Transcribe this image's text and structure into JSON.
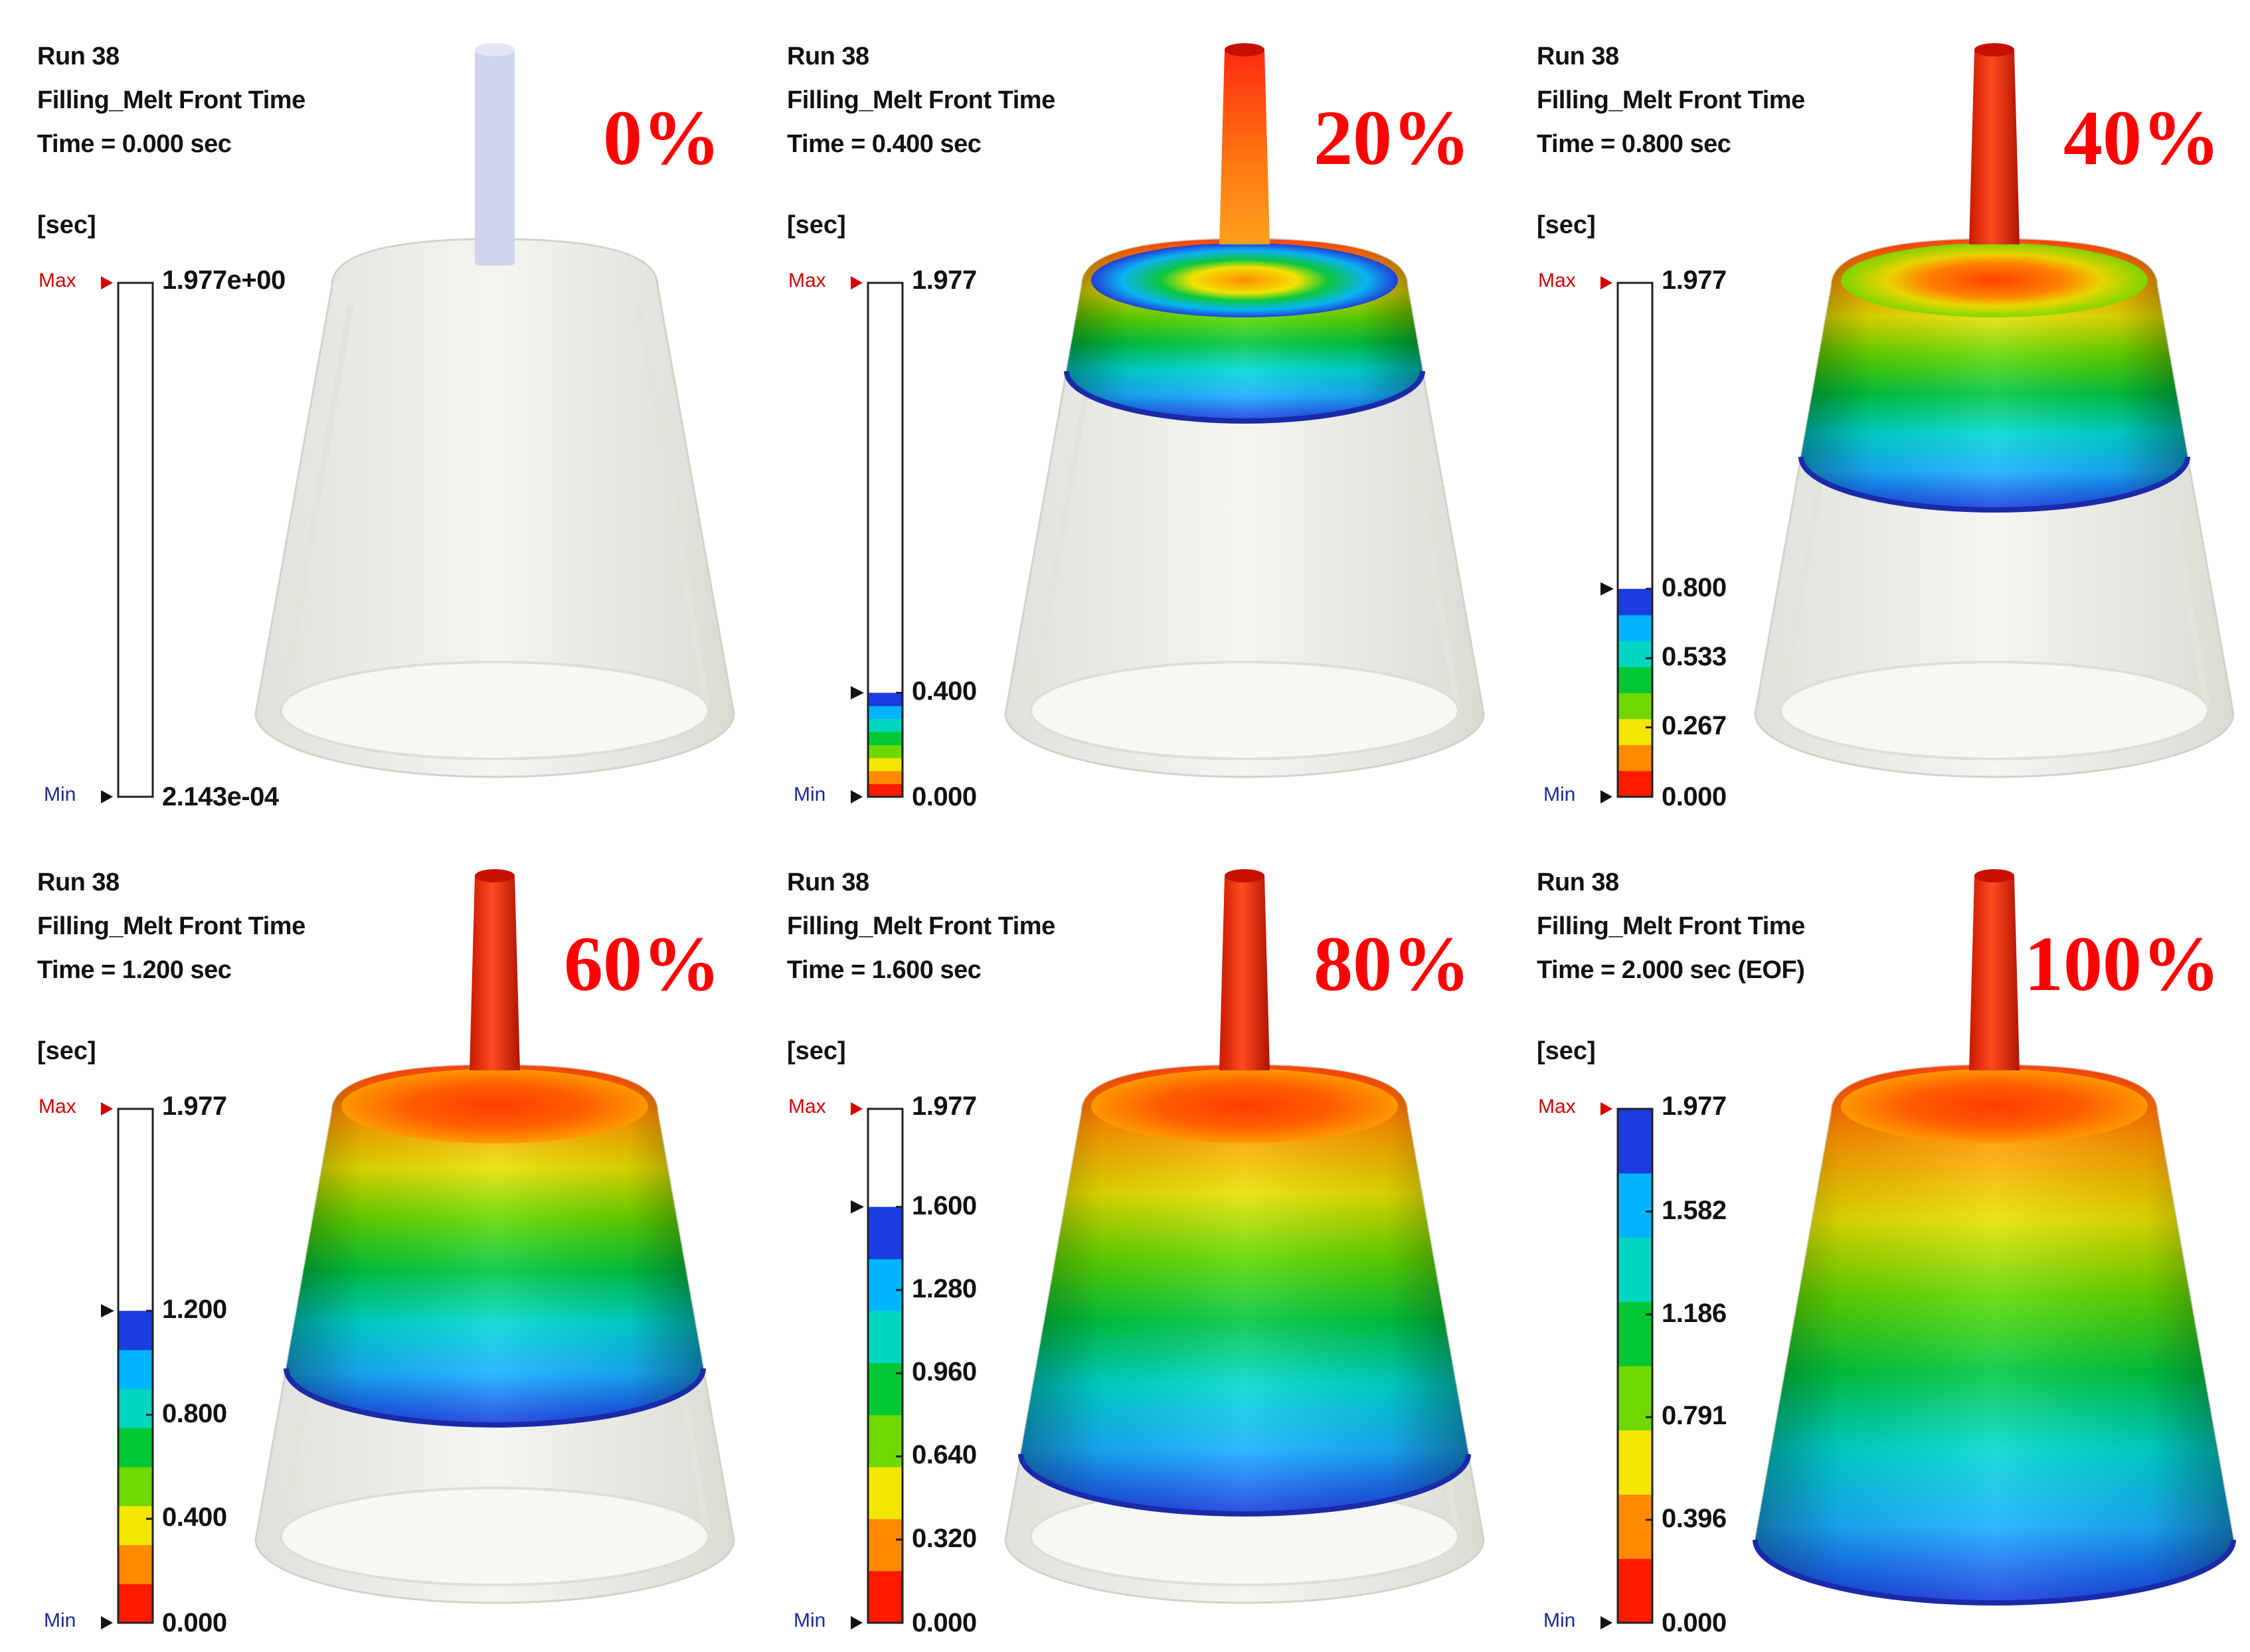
{
  "panels": [
    {
      "run": "Run 38",
      "result": "Filling_Melt Front Time",
      "time": "Time = 0.000 sec",
      "unit": "[sec]",
      "percent": "0%",
      "fill_fraction": 0.0,
      "legend": {
        "max_label": "Max",
        "min_label": "Min",
        "max_value": "1.977e+00",
        "min_value": "2.143e-04",
        "current_fraction": 0.0,
        "ticks": []
      }
    },
    {
      "run": "Run 38",
      "result": "Filling_Melt Front Time",
      "time": "Time = 0.400 sec",
      "unit": "[sec]",
      "percent": "20%",
      "fill_fraction": 0.2,
      "legend": {
        "max_label": "Max",
        "min_label": "Min",
        "max_value": "1.977",
        "min_value": "0.000",
        "current_fraction": 0.2023,
        "ticks": [
          {
            "value": "0.400",
            "fraction": 0.2023
          }
        ]
      }
    },
    {
      "run": "Run 38",
      "result": "Filling_Melt Front Time",
      "time": "Time = 0.800 sec",
      "unit": "[sec]",
      "percent": "40%",
      "fill_fraction": 0.4,
      "legend": {
        "max_label": "Max",
        "min_label": "Min",
        "max_value": "1.977",
        "min_value": "0.000",
        "current_fraction": 0.4046,
        "ticks": [
          {
            "value": "0.800",
            "fraction": 0.4046
          },
          {
            "value": "0.533",
            "fraction": 0.2696
          },
          {
            "value": "0.267",
            "fraction": 0.1351
          }
        ]
      }
    },
    {
      "run": "Run 38",
      "result": "Filling_Melt Front Time",
      "time": "Time = 1.200 sec",
      "unit": "[sec]",
      "percent": "60%",
      "fill_fraction": 0.6,
      "legend": {
        "max_label": "Max",
        "min_label": "Min",
        "max_value": "1.977",
        "min_value": "0.000",
        "current_fraction": 0.607,
        "ticks": [
          {
            "value": "1.200",
            "fraction": 0.607
          },
          {
            "value": "0.800",
            "fraction": 0.4046
          },
          {
            "value": "0.400",
            "fraction": 0.2023
          }
        ]
      }
    },
    {
      "run": "Run 38",
      "result": "Filling_Melt Front Time",
      "time": "Time = 1.600 sec",
      "unit": "[sec]",
      "percent": "80%",
      "fill_fraction": 0.8,
      "legend": {
        "max_label": "Max",
        "min_label": "Min",
        "max_value": "1.977",
        "min_value": "0.000",
        "current_fraction": 0.8093,
        "ticks": [
          {
            "value": "1.600",
            "fraction": 0.8093
          },
          {
            "value": "1.280",
            "fraction": 0.6474
          },
          {
            "value": "0.960",
            "fraction": 0.4856
          },
          {
            "value": "0.640",
            "fraction": 0.3237
          },
          {
            "value": "0.320",
            "fraction": 0.1619
          }
        ]
      }
    },
    {
      "run": "Run 38",
      "result": "Filling_Melt Front Time",
      "time": "Time = 2.000 sec (EOF)",
      "unit": "[sec]",
      "percent": "100%",
      "fill_fraction": 1.0,
      "legend": {
        "max_label": "Max",
        "min_label": "Min",
        "max_value": "1.977",
        "min_value": "0.000",
        "current_fraction": 1.0,
        "ticks": [
          {
            "value": "1.582",
            "fraction": 0.8002
          },
          {
            "value": "1.186",
            "fraction": 0.5999
          },
          {
            "value": "0.791",
            "fraction": 0.4001
          },
          {
            "value": "0.396",
            "fraction": 0.2003
          }
        ]
      }
    }
  ],
  "colors": {
    "percent_text": "#ff0000",
    "max_label": "#d40000",
    "min_label": "#1a2a9a",
    "ghost_part": "#ecefe6",
    "ghost_sprue": "#cfd5ea",
    "scale": [
      "#ff1a00",
      "#ff8a00",
      "#f3e600",
      "#6fd800",
      "#00c832",
      "#00d6c0",
      "#00b4ff",
      "#1a3ce0"
    ]
  }
}
